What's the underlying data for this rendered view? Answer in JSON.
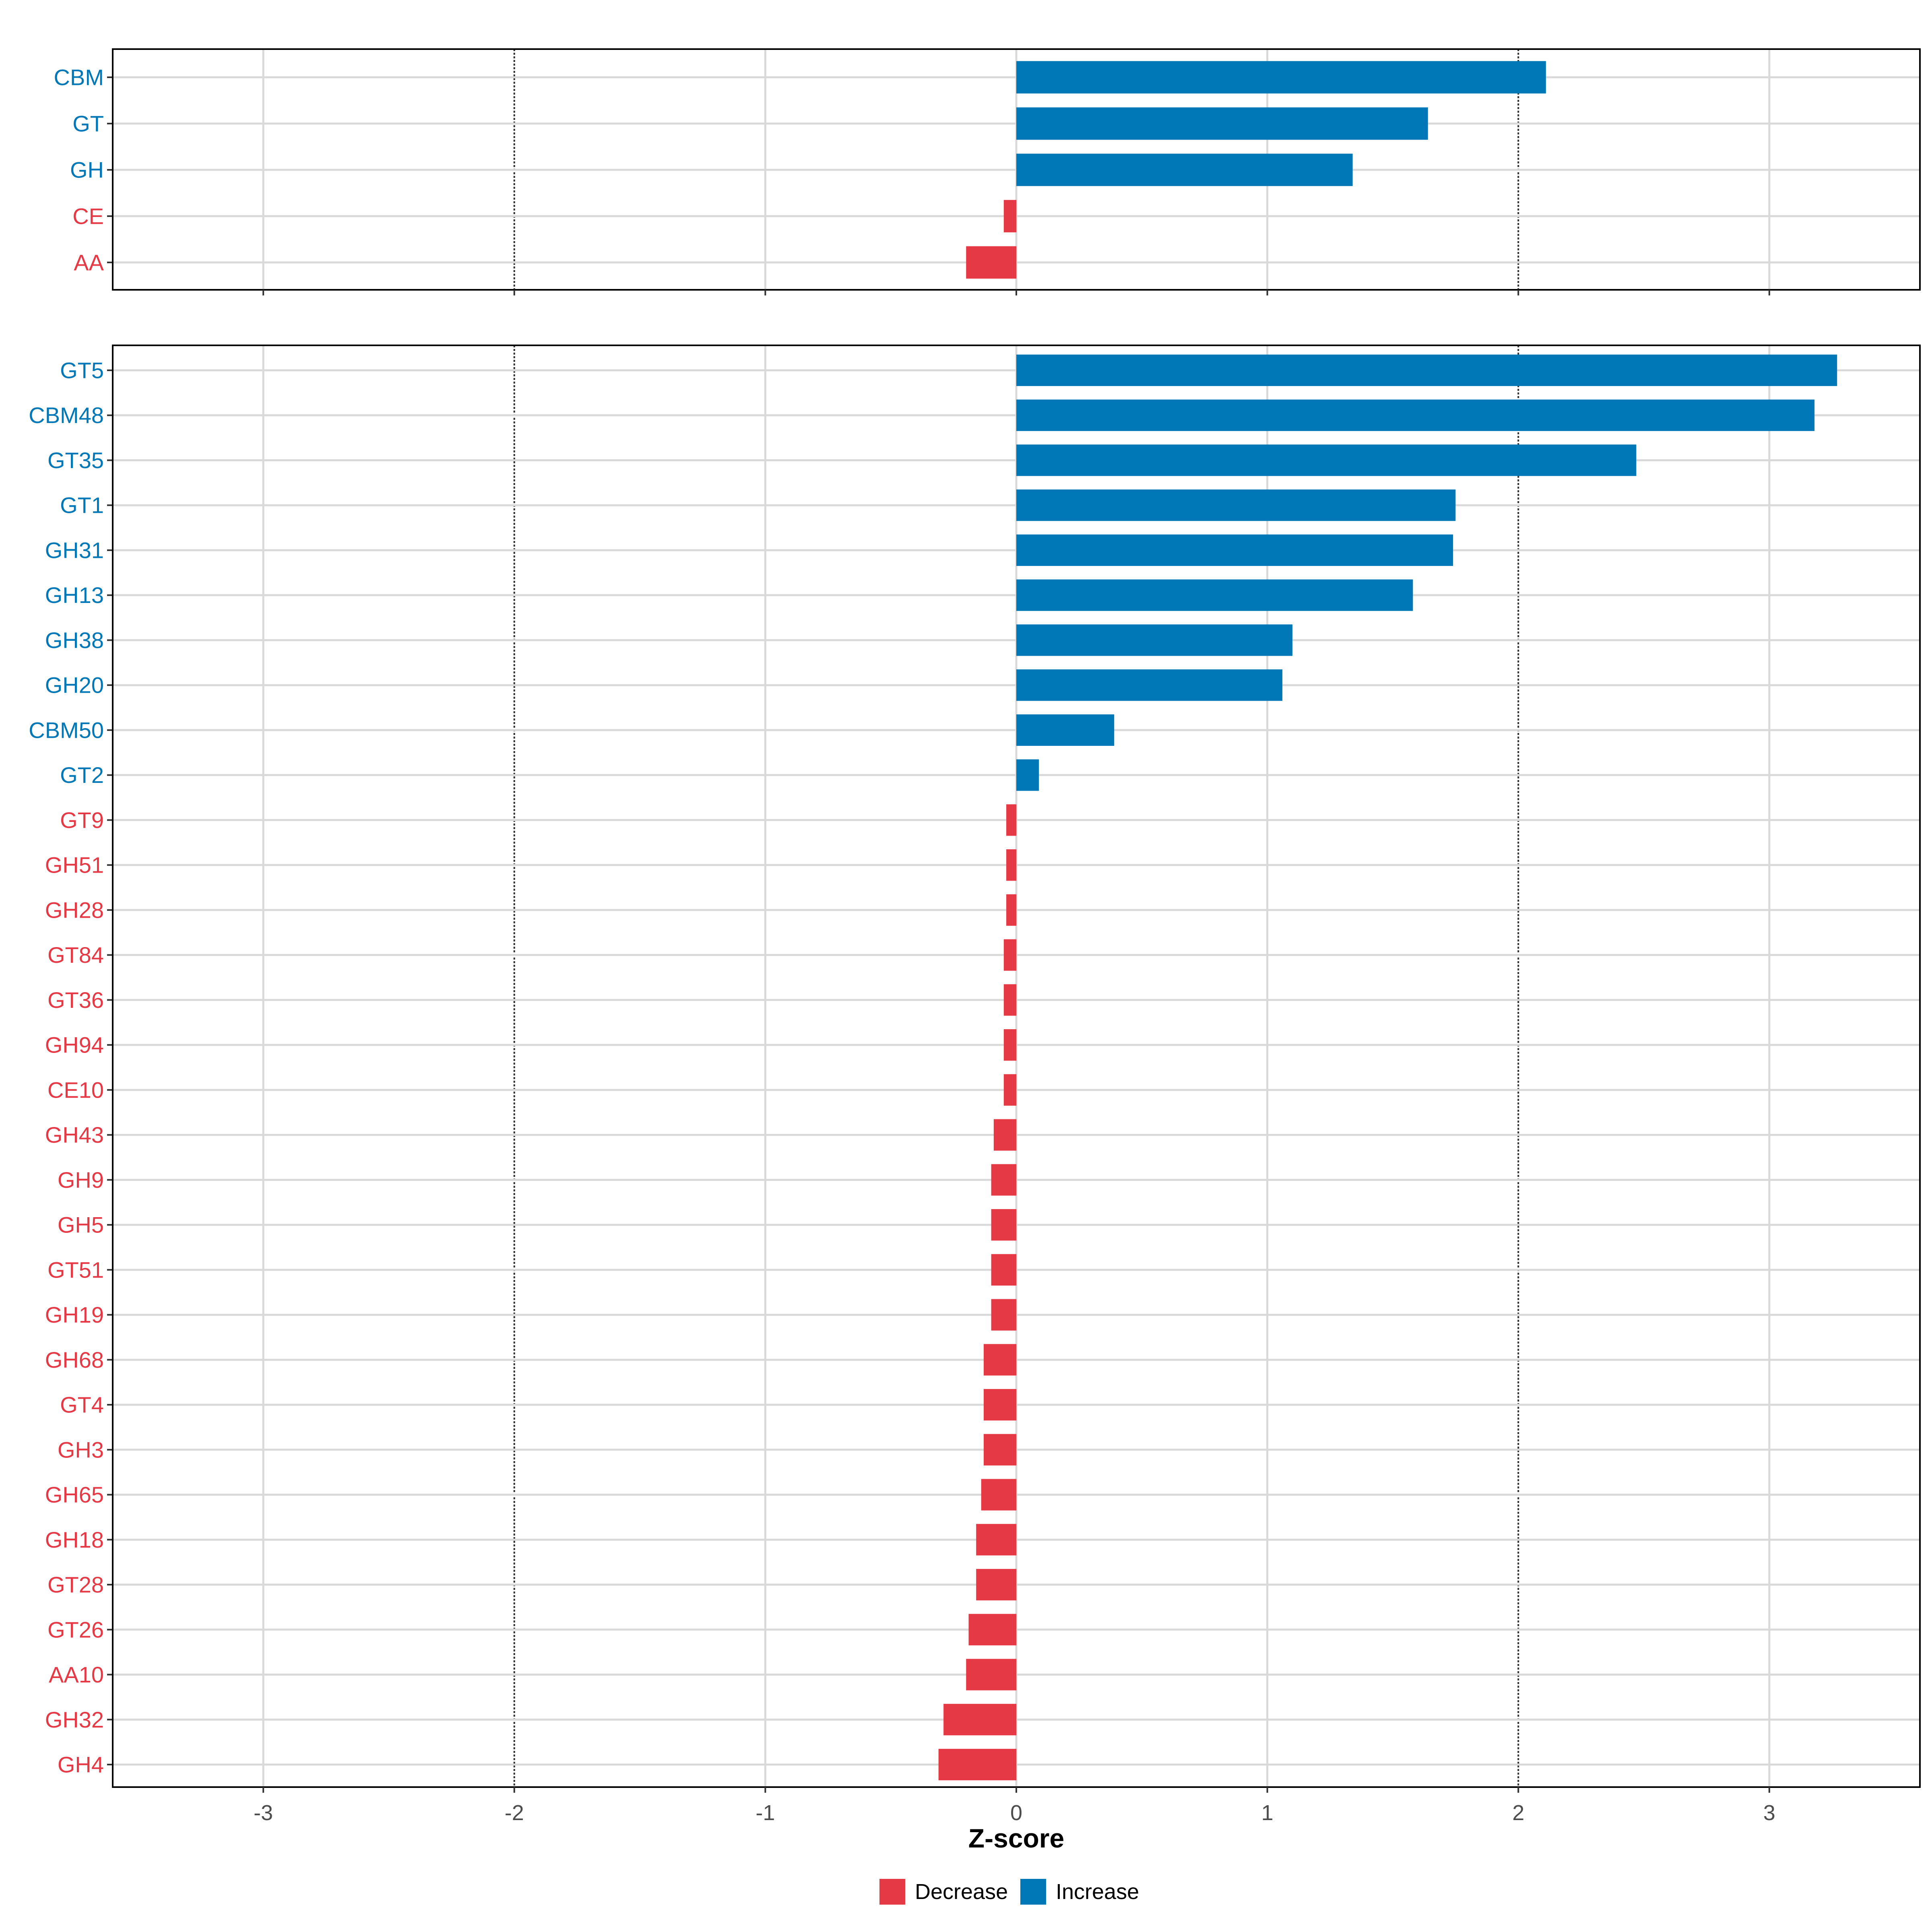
{
  "colors": {
    "increase": "#0077B6",
    "decrease": "#E63946",
    "grid": "#D9D9D9",
    "threshold": "#333333",
    "axis_text": "#4D4D4D",
    "frame": "#000000"
  },
  "chart_data": {
    "type": "bar",
    "orientation": "horizontal",
    "xlabel": "Z-score",
    "xlim": [
      -3.6,
      3.6
    ],
    "xticks": [
      -3,
      -2,
      -1,
      0,
      1,
      2,
      3
    ],
    "xtick_labels": [
      "-3",
      "-2",
      "-1",
      "0",
      "1",
      "2",
      "3"
    ],
    "threshold_lines": [
      -2,
      2
    ],
    "grid": true,
    "legend": {
      "position": "bottom",
      "items": [
        {
          "key": "decrease",
          "label": "Decrease"
        },
        {
          "key": "increase",
          "label": "Increase"
        }
      ]
    },
    "panels": [
      {
        "name": "families",
        "categories": [
          "CBM",
          "GT",
          "GH",
          "CE",
          "AA"
        ],
        "values": [
          2.11,
          1.64,
          1.34,
          -0.05,
          -0.2
        ]
      },
      {
        "name": "subfamilies",
        "categories": [
          "GT5",
          "CBM48",
          "GT35",
          "GT1",
          "GH31",
          "GH13",
          "GH38",
          "GH20",
          "CBM50",
          "GT2",
          "GT9",
          "GH51",
          "GH28",
          "GT84",
          "GT36",
          "GH94",
          "CE10",
          "GH43",
          "GH9",
          "GH5",
          "GT51",
          "GH19",
          "GH68",
          "GT4",
          "GH3",
          "GH65",
          "GH18",
          "GT28",
          "GT26",
          "AA10",
          "GH32",
          "GH4"
        ],
        "values": [
          3.27,
          3.18,
          2.47,
          1.75,
          1.74,
          1.58,
          1.1,
          1.06,
          0.39,
          0.09,
          -0.04,
          -0.04,
          -0.04,
          -0.05,
          -0.05,
          -0.05,
          -0.05,
          -0.09,
          -0.1,
          -0.1,
          -0.1,
          -0.1,
          -0.13,
          -0.13,
          -0.13,
          -0.14,
          -0.16,
          -0.16,
          -0.19,
          -0.2,
          -0.29,
          -0.31
        ]
      }
    ]
  }
}
